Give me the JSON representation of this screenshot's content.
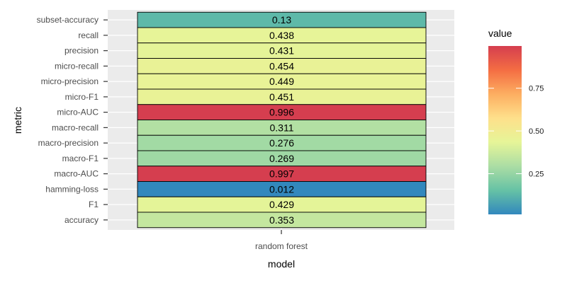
{
  "chart_data": {
    "type": "heatmap",
    "xlabel": "model",
    "ylabel": "metric",
    "categories_x": [
      "random forest"
    ],
    "categories_y": [
      "subset-accuracy",
      "recall",
      "precision",
      "micro-recall",
      "micro-precision",
      "micro-F1",
      "micro-AUC",
      "macro-recall",
      "macro-precision",
      "macro-F1",
      "macro-AUC",
      "hamming-loss",
      "F1",
      "accuracy"
    ],
    "cells": [
      {
        "metric": "subset-accuracy",
        "model": "random forest",
        "value": 0.13,
        "label": "0.13"
      },
      {
        "metric": "recall",
        "model": "random forest",
        "value": 0.438,
        "label": "0.438"
      },
      {
        "metric": "precision",
        "model": "random forest",
        "value": 0.431,
        "label": "0.431"
      },
      {
        "metric": "micro-recall",
        "model": "random forest",
        "value": 0.454,
        "label": "0.454"
      },
      {
        "metric": "micro-precision",
        "model": "random forest",
        "value": 0.449,
        "label": "0.449"
      },
      {
        "metric": "micro-F1",
        "model": "random forest",
        "value": 0.451,
        "label": "0.451"
      },
      {
        "metric": "micro-AUC",
        "model": "random forest",
        "value": 0.996,
        "label": "0.996"
      },
      {
        "metric": "macro-recall",
        "model": "random forest",
        "value": 0.311,
        "label": "0.311"
      },
      {
        "metric": "macro-precision",
        "model": "random forest",
        "value": 0.276,
        "label": "0.276"
      },
      {
        "metric": "macro-F1",
        "model": "random forest",
        "value": 0.269,
        "label": "0.269"
      },
      {
        "metric": "macro-AUC",
        "model": "random forest",
        "value": 0.997,
        "label": "0.997"
      },
      {
        "metric": "hamming-loss",
        "model": "random forest",
        "value": 0.012,
        "label": "0.012"
      },
      {
        "metric": "F1",
        "model": "random forest",
        "value": 0.429,
        "label": "0.429"
      },
      {
        "metric": "accuracy",
        "model": "random forest",
        "value": 0.353,
        "label": "0.353"
      }
    ],
    "legend": {
      "title": "value",
      "range": [
        0.012,
        0.997
      ],
      "breaks": [
        0.25,
        0.5,
        0.75
      ],
      "break_labels": [
        "0.25",
        "0.50",
        "0.75"
      ],
      "placement": "right",
      "palette": [
        "#3288bd",
        "#66c2a5",
        "#abdda4",
        "#e6f598",
        "#fee08b",
        "#fdae61",
        "#f46d43",
        "#d53e4f"
      ]
    },
    "grid": true,
    "panel_background": "#ebebeb"
  }
}
